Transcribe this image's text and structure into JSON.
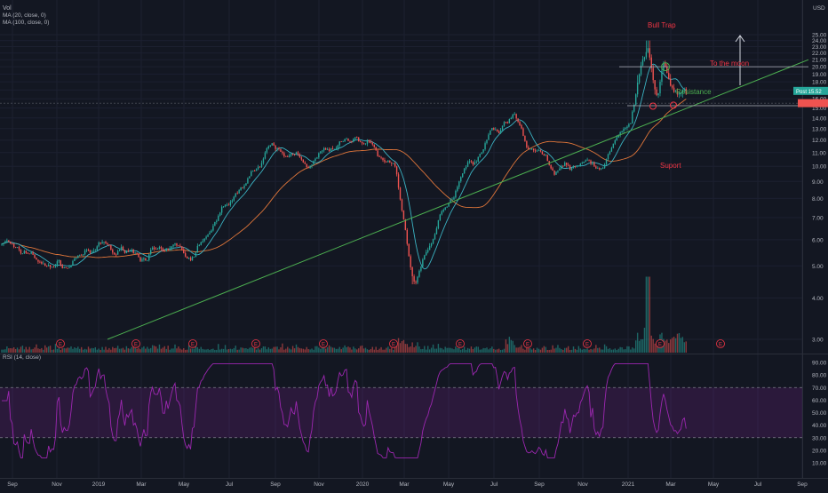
{
  "chart_data": {
    "type": "candlestick",
    "indicators": {
      "volume_label": "Vol",
      "ma1_label": "MA (20, close, 0)",
      "ma2_label": "MA (100, close, 0)",
      "rsi_label": "RSI (14, close)"
    },
    "currency": "USD",
    "price_axis": {
      "ticks": [
        "3.00",
        "4.00",
        "5.00",
        "6.00",
        "7.00",
        "8.00",
        "9.00",
        "10.00",
        "11.00",
        "12.00",
        "13.00",
        "14.00",
        "15.00",
        "16.00",
        "17.00",
        "18.00",
        "19.00",
        "20.00",
        "21.00",
        "22.00",
        "23.00",
        "24.00",
        "25.00"
      ],
      "scale": "log"
    },
    "rsi_axis": {
      "ticks": [
        "10.00",
        "20.00",
        "30.00",
        "40.00",
        "50.00",
        "60.00",
        "70.00",
        "80.00",
        "90.00"
      ],
      "overbought": 70,
      "oversold": 30
    },
    "time_axis": [
      "Sep",
      "Nov",
      "2019",
      "Mar",
      "May",
      "Jul",
      "Sep",
      "Nov",
      "2020",
      "Mar",
      "May",
      "Jul",
      "Sep",
      "Nov",
      "2021",
      "Mar",
      "May",
      "Jul",
      "Sep"
    ],
    "last_price_label": "Post  15.52",
    "earnings_marker": "E",
    "series_keypoints": [
      {
        "date": "Aug 2018",
        "close": 5.9
      },
      {
        "date": "Nov 2018",
        "close": 4.9
      },
      {
        "date": "Feb 2019",
        "close": 5.6
      },
      {
        "date": "May 2019",
        "close": 5.4
      },
      {
        "date": "Jul 2019",
        "close": 7.8
      },
      {
        "date": "Aug 2019",
        "close": 11.0
      },
      {
        "date": "Oct 2019",
        "close": 10.5
      },
      {
        "date": "Dec 2019",
        "close": 12.3
      },
      {
        "date": "Feb 2020",
        "close": 9.8
      },
      {
        "date": "Mar 2020",
        "close": 4.4
      },
      {
        "date": "Jun 2020",
        "close": 9.8
      },
      {
        "date": "Aug 2020",
        "close": 14.5
      },
      {
        "date": "Sep 2020",
        "close": 11.8
      },
      {
        "date": "Oct 2020",
        "close": 9.8
      },
      {
        "date": "Dec 2020",
        "close": 10.2
      },
      {
        "date": "Jan 2021",
        "close": 13.8
      },
      {
        "date": "Feb 2021",
        "close": 24.0
      },
      {
        "date": "Feb 2021",
        "close": 15.2
      },
      {
        "date": "Mar 2021",
        "close": 20.0
      },
      {
        "date": "Mar 2021",
        "close": 15.5
      }
    ],
    "annotations": {
      "bull_trap": "Bull Trap",
      "to_the_moon": "To the moon",
      "resistance": "Resistance",
      "support": "Suport"
    },
    "colors": {
      "background": "#131722",
      "up": "#26a69a",
      "down": "#ef5350",
      "ma20": "#3bb3c3",
      "ma100": "#e0763a",
      "trendline": "#4caf50",
      "rsi": "#9c27b0",
      "annotation": "#f23645"
    }
  }
}
